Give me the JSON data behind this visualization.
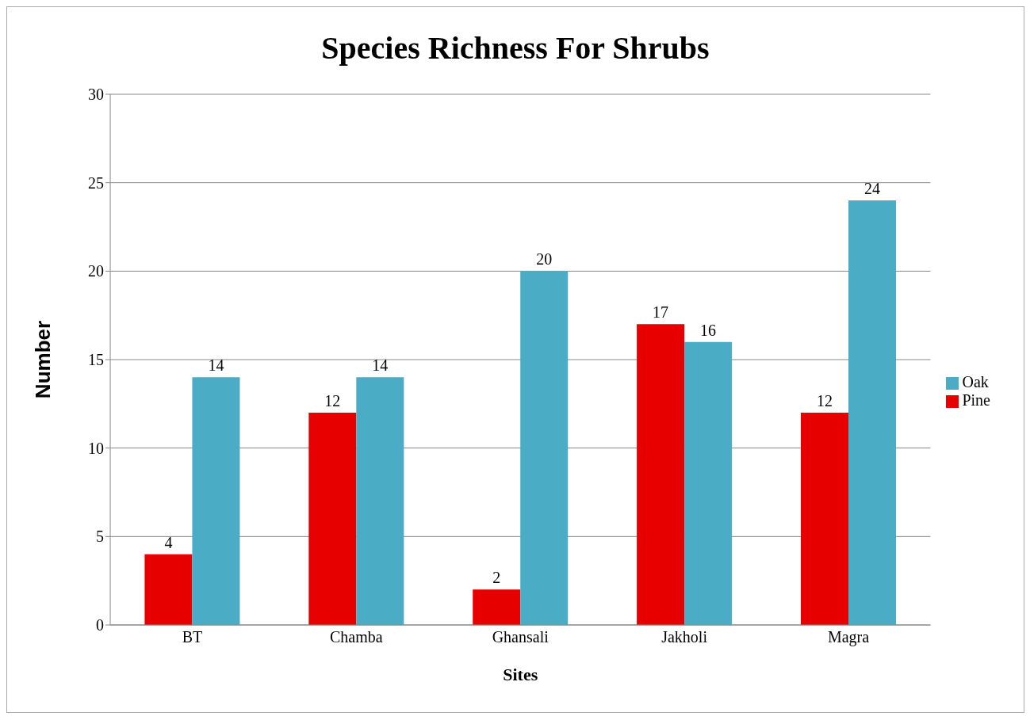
{
  "chart_data": {
    "type": "bar",
    "title": "Species Richness For Shrubs",
    "xlabel": "Sites",
    "ylabel": "Number",
    "categories": [
      "BT",
      "Chamba",
      "Ghansali",
      "Jakholi",
      "Magra"
    ],
    "series": [
      {
        "name": "Pine",
        "color": "#e60000",
        "values": [
          4,
          12,
          2,
          17,
          12
        ]
      },
      {
        "name": "Oak",
        "color": "#4bacc6",
        "values": [
          14,
          14,
          20,
          16,
          24
        ]
      }
    ],
    "ylim": [
      0,
      30
    ],
    "yticks": [
      0,
      5,
      10,
      15,
      20,
      25,
      30
    ],
    "grid": "y",
    "legend": "right",
    "data_labels": true
  }
}
